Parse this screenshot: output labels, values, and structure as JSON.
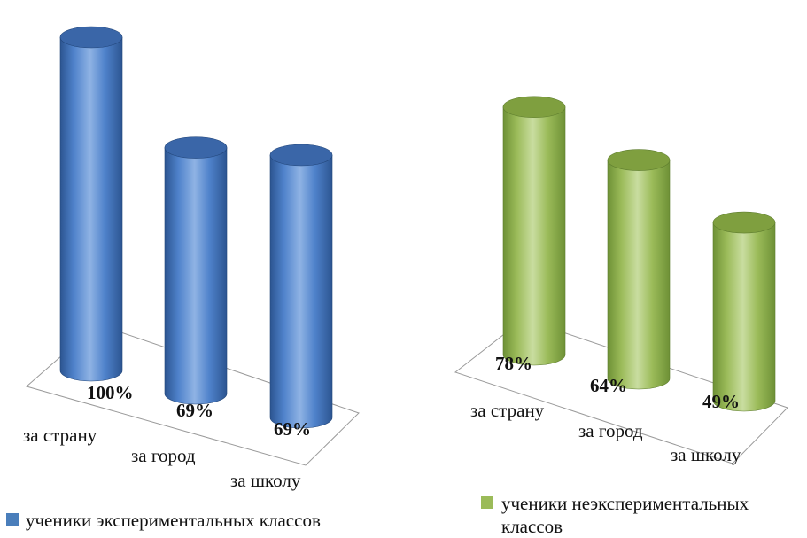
{
  "chart_data": [
    {
      "type": "bar",
      "categories": [
        "за страну",
        "за город",
        "за школу"
      ],
      "series": [
        {
          "name": "ученики экспериментальных классов",
          "values": [
            100,
            69,
            69
          ],
          "value_labels": [
            "100%",
            "69%",
            "69%"
          ]
        }
      ],
      "legend_lines": [
        "ученики экспериментальных классов"
      ],
      "legend_placement": "bottom-left",
      "title": "",
      "xlabel": "",
      "ylabel": "",
      "ylim": [
        0,
        100
      ],
      "grid": false,
      "colors": {
        "top": "#3A66A8",
        "body_dark": "#2C5591",
        "body_mid": "#4F82CB",
        "body_light": "#8FB3E4",
        "edge": "#22467A",
        "legend": "#4A7EBB"
      }
    },
    {
      "type": "bar",
      "categories": [
        "за страну",
        "за город",
        "за школу"
      ],
      "series": [
        {
          "name": "ученики неэкспериментальных классов",
          "values": [
            78,
            64,
            49
          ],
          "value_labels": [
            "78%",
            "64%",
            "49%"
          ]
        }
      ],
      "legend_lines": [
        "ученики неэкспериментальных",
        "классов"
      ],
      "legend_placement": "bottom-left",
      "title": "",
      "xlabel": "",
      "ylabel": "",
      "ylim": [
        0,
        100
      ],
      "grid": false,
      "colors": {
        "top": "#7F9F3F",
        "body_dark": "#6E9136",
        "body_mid": "#9BBB59",
        "body_light": "#C9DDA0",
        "edge": "#5E7D2E",
        "legend": "#9BBB59"
      }
    }
  ]
}
